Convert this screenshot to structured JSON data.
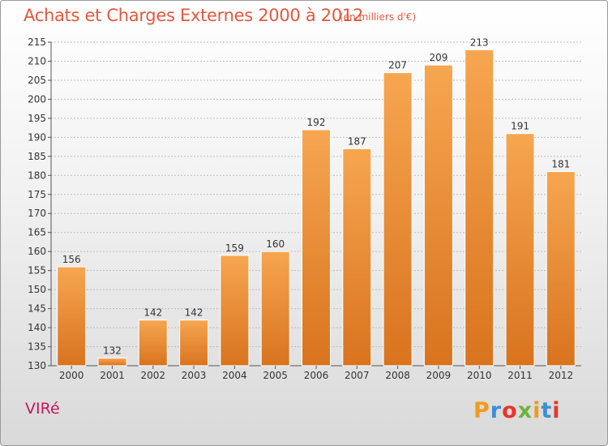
{
  "chart_data": {
    "type": "bar",
    "title": "Achats et Charges Externes 2000 à 2012",
    "subtitle": "(en milliers d'€)",
    "categories": [
      "2000",
      "2001",
      "2002",
      "2003",
      "2004",
      "2005",
      "2006",
      "2007",
      "2008",
      "2009",
      "2010",
      "2011",
      "2012"
    ],
    "values": [
      156,
      132,
      142,
      142,
      159,
      160,
      192,
      187,
      207,
      209,
      213,
      191,
      181
    ],
    "ylim": [
      130,
      215
    ],
    "yticks": [
      130,
      135,
      140,
      145,
      150,
      155,
      160,
      165,
      170,
      175,
      180,
      185,
      190,
      195,
      200,
      205,
      210,
      215
    ],
    "grid": true,
    "bar_color_top": "#f7a650",
    "bar_color_bottom": "#d9731e"
  },
  "footer": {
    "commune": "VIRé",
    "brand": "Proxiti"
  },
  "logo_colors": [
    "#f29a1e",
    "#3b8fd6",
    "#e9352b",
    "#6cb33f",
    "#f29a1e",
    "#3b8fd6",
    "#e9352b"
  ]
}
